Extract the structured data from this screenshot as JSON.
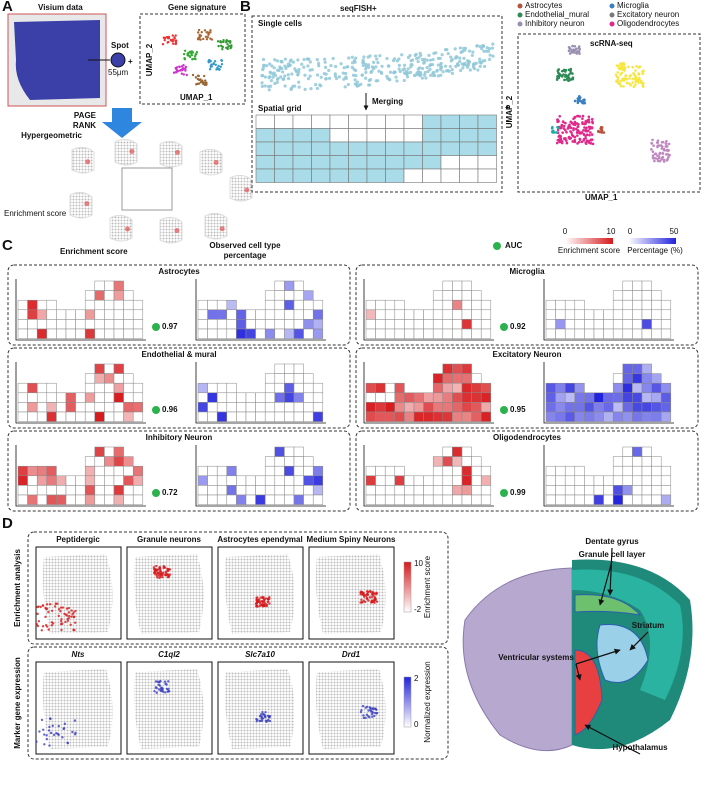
{
  "panel_a": {
    "letter": "A",
    "visium": "Visium data",
    "spot": "Spot",
    "spot_size": "55μm",
    "gene_signature": "Gene signature",
    "umap1": "UMAP_1",
    "umap2": "UMAP_2",
    "methods": [
      "PAGE",
      "RANK",
      "Hypergeometric"
    ],
    "enrichment": "Enrichment score"
  },
  "panel_b": {
    "letter": "B",
    "title": "seqFISH+",
    "single_cells": "Single cells",
    "merging": "Merging",
    "spatial_grid": "Spatial grid",
    "scrna": "scRNA-seq",
    "umap1": "UMAP_1",
    "umap2": "UMAP_2",
    "legend": [
      {
        "name": "Astrocytes",
        "color": "#b5533c"
      },
      {
        "name": "Endothelial_mural",
        "color": "#2e8b57"
      },
      {
        "name": "Inhibitory neuron",
        "color": "#9a8fb0"
      },
      {
        "name": "Microglia",
        "color": "#3a7fc1"
      },
      {
        "name": "Excitatory neuron",
        "color": "#7a7a7a"
      },
      {
        "name": "Oligodendrocytes",
        "color": "#e0298a"
      }
    ]
  },
  "panel_c": {
    "letter": "C",
    "enrichment_score": "Enrichment score",
    "observed": "Observed cell type percentage",
    "auc": "AUC",
    "scale_enrich": {
      "label": "Enrichment score",
      "ticks": [
        "0",
        "10"
      ]
    },
    "scale_pct": {
      "label": "Percentage (%)",
      "ticks": [
        "0",
        "50"
      ]
    },
    "cells": [
      {
        "name": "Astrocytes",
        "auc": "0.97"
      },
      {
        "name": "Microglia",
        "auc": "0.92"
      },
      {
        "name": "Endothelial & mural",
        "auc": "0.96"
      },
      {
        "name": "Excitatory Neuron",
        "auc": "0.95"
      },
      {
        "name": "Inhibitory Neuron",
        "auc": "0.72"
      },
      {
        "name": "Oligodendrocytes",
        "auc": "0.99"
      }
    ]
  },
  "panel_d": {
    "letter": "D",
    "row1_label": "Enrichment analysis",
    "row2_label": "Marker gene expression",
    "enrichment_titles": [
      "Peptidergic",
      "Granule neurons",
      "Astrocytes ependymal",
      "Medium Spiny Neurons"
    ],
    "marker_titles": [
      "Nts",
      "C1ql2",
      "Slc7a10",
      "Drd1"
    ],
    "enrich_bar": {
      "label": "Enrichment score",
      "max": "10",
      "min": "-2"
    },
    "marker_bar": {
      "label": "Normalized expression",
      "max": "2",
      "min": "0"
    },
    "regions": [
      "Dentate gyrus",
      "Granule cell layer",
      "Striatum",
      "Ventricular systems",
      "Hypothalamus"
    ]
  }
}
